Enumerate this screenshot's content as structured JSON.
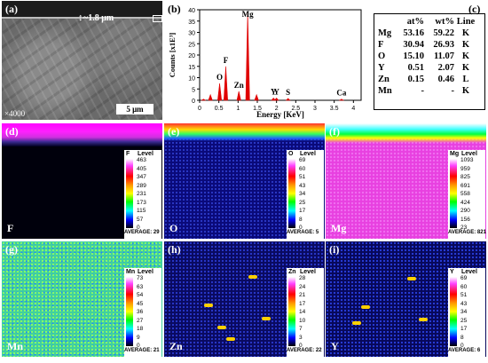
{
  "panel_a": {
    "label": "(a)",
    "thickness": "~1.8 μm",
    "magnification": "×4000",
    "scale_bar": "5 μm"
  },
  "panel_b": {
    "label": "(b)",
    "ylabel": "Counts [x1E³]",
    "xlabel": "Energy [KeV]",
    "x_ticks": [
      "0",
      "0.5",
      "1",
      "1.5",
      "2",
      "2.5",
      "3",
      "3.5",
      "4"
    ],
    "y_ticks": [
      "0",
      "5",
      "10",
      "15",
      "20",
      "25",
      "30",
      "35",
      "40"
    ],
    "peak_labels": [
      "O",
      "F",
      "Zn",
      "Mg",
      "Y",
      "Y",
      "S",
      "Ca"
    ]
  },
  "chart_data": {
    "type": "line",
    "xlabel": "Energy [KeV]",
    "ylabel": "Counts [x1E³]",
    "xlim": [
      0,
      4.2
    ],
    "ylim": [
      0,
      40
    ],
    "series": [
      {
        "x": [
          0.1,
          0.28,
          0.52,
          0.68,
          1.02,
          1.25,
          1.48,
          1.92,
          2.0,
          2.3,
          3.69
        ],
        "values": [
          0.5,
          2.5,
          7.5,
          15,
          4,
          39,
          2.5,
          1,
          1,
          0.8,
          0.5
        ]
      }
    ],
    "annotations": [
      {
        "text": "O",
        "x": 0.52
      },
      {
        "text": "F",
        "x": 0.68
      },
      {
        "text": "Zn",
        "x": 1.02
      },
      {
        "text": "Mg",
        "x": 1.25
      },
      {
        "text": "Y",
        "x": 1.92
      },
      {
        "text": "Y",
        "x": 2.0
      },
      {
        "text": "S",
        "x": 2.3
      },
      {
        "text": "Ca",
        "x": 3.69
      }
    ],
    "color": "#e00000"
  },
  "panel_c": {
    "label": "(c)",
    "headers": [
      "",
      "at%",
      "wt%",
      "Line"
    ],
    "rows": [
      [
        "Mg",
        "53.16",
        "59.22",
        "K"
      ],
      [
        "F",
        "30.94",
        "26.93",
        "K"
      ],
      [
        "O",
        "15.10",
        "11.07",
        "K"
      ],
      [
        "Y",
        "0.51",
        "2.07",
        "K"
      ],
      [
        "Zn",
        "0.15",
        "0.46",
        "L"
      ],
      [
        "Mn",
        "-",
        "-",
        "K"
      ]
    ]
  },
  "maps": [
    {
      "label": "(d)",
      "element": "F",
      "level": "Level",
      "ticks": [
        "463",
        "405",
        "347",
        "289",
        "231",
        "173",
        "115",
        "57",
        "0"
      ],
      "average": "AVERAGE: 29"
    },
    {
      "label": "(e)",
      "element": "O",
      "level": "Level",
      "ticks": [
        "69",
        "60",
        "51",
        "43",
        "34",
        "25",
        "17",
        "8",
        "0"
      ],
      "average": "AVERAGE: 5"
    },
    {
      "label": "(f)",
      "element": "Mg",
      "level": "Level",
      "ticks": [
        "1093",
        "959",
        "825",
        "691",
        "558",
        "424",
        "290",
        "156",
        "23"
      ],
      "average": "AVERAGE: 821"
    },
    {
      "label": "(g)",
      "element": "Mn",
      "level": "Level",
      "ticks": [
        "73",
        "63",
        "54",
        "45",
        "36",
        "27",
        "18",
        "9",
        "0"
      ],
      "average": "AVERAGE: 21"
    },
    {
      "label": "(h)",
      "element": "Zn",
      "level": "Level",
      "ticks": [
        "28",
        "24",
        "21",
        "17",
        "14",
        "10",
        "7",
        "3",
        "0"
      ],
      "average": "AVERAGE: 22"
    },
    {
      "label": "(i)",
      "element": "Y",
      "level": "Level",
      "ticks": [
        "69",
        "60",
        "51",
        "43",
        "34",
        "25",
        "17",
        "8",
        "0"
      ],
      "average": "AVERAGE: 6"
    }
  ]
}
